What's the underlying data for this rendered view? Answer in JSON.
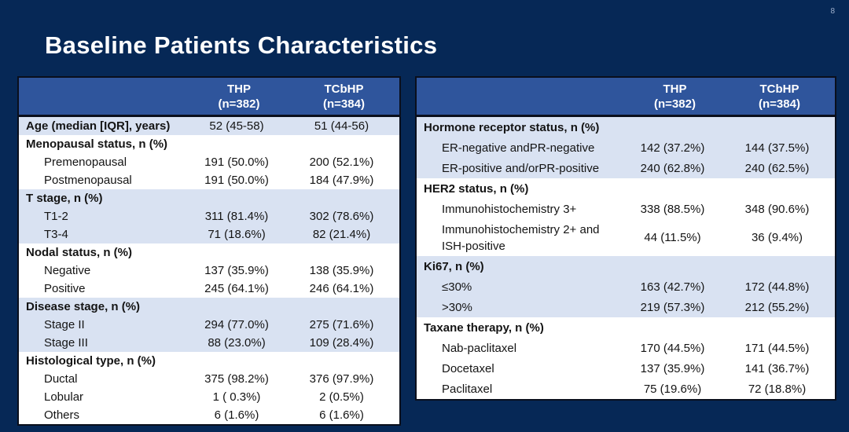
{
  "page_number": "8",
  "title": "Baseline Patients Characteristics",
  "colors": {
    "slide_background": "#062856",
    "table_header_blue": "#2f559c",
    "row_light_blue": "#d9e2f2",
    "row_white": "#ffffff",
    "table_border": "#0a0f1c",
    "title_text": "#ffffff"
  },
  "left_table": {
    "header": {
      "group_label": "",
      "thp": [
        "THP",
        "(n=382)"
      ],
      "tcbhp": [
        "TCbHP",
        "(n=384)"
      ]
    },
    "groups": [
      {
        "shade": "blue",
        "rows": [
          {
            "label": "Age (median [IQR], years)",
            "bold": true,
            "indent": false,
            "thp": "52 (45-58)",
            "tcbhp": "51 (44-56)"
          }
        ]
      },
      {
        "shade": "white",
        "rows": [
          {
            "label": "Menopausal status, n (%)",
            "bold": true,
            "indent": false,
            "thp": "",
            "tcbhp": ""
          },
          {
            "label": "Premenopausal",
            "bold": false,
            "indent": true,
            "thp": "191 (50.0%)",
            "tcbhp": "200 (52.1%)"
          },
          {
            "label": "Postmenopausal",
            "bold": false,
            "indent": true,
            "thp": "191 (50.0%)",
            "tcbhp": "184 (47.9%)"
          }
        ]
      },
      {
        "shade": "blue",
        "rows": [
          {
            "label": "T stage, n (%)",
            "bold": true,
            "indent": false,
            "thp": "",
            "tcbhp": ""
          },
          {
            "label": "T1-2",
            "bold": false,
            "indent": true,
            "thp": "311 (81.4%)",
            "tcbhp": "302 (78.6%)"
          },
          {
            "label": "T3-4",
            "bold": false,
            "indent": true,
            "thp": "71 (18.6%)",
            "tcbhp": "82 (21.4%)"
          }
        ]
      },
      {
        "shade": "white",
        "rows": [
          {
            "label": "Nodal status, n (%)",
            "bold": true,
            "indent": false,
            "thp": "",
            "tcbhp": ""
          },
          {
            "label": "Negative",
            "bold": false,
            "indent": true,
            "thp": "137 (35.9%)",
            "tcbhp": "138 (35.9%)"
          },
          {
            "label": "Positive",
            "bold": false,
            "indent": true,
            "thp": "245 (64.1%)",
            "tcbhp": "246 (64.1%)"
          }
        ]
      },
      {
        "shade": "blue",
        "rows": [
          {
            "label": "Disease stage, n (%)",
            "bold": true,
            "indent": false,
            "thp": "",
            "tcbhp": ""
          },
          {
            "label": "Stage II",
            "bold": false,
            "indent": true,
            "thp": "294 (77.0%)",
            "tcbhp": "275 (71.6%)"
          },
          {
            "label": "Stage III",
            "bold": false,
            "indent": true,
            "thp": "88 (23.0%)",
            "tcbhp": "109 (28.4%)"
          }
        ]
      },
      {
        "shade": "white",
        "rows": [
          {
            "label": "Histological type, n (%)",
            "bold": true,
            "indent": false,
            "thp": "",
            "tcbhp": ""
          },
          {
            "label": "Ductal",
            "bold": false,
            "indent": true,
            "thp": "375 (98.2%)",
            "tcbhp": "376 (97.9%)"
          },
          {
            "label": "Lobular",
            "bold": false,
            "indent": true,
            "thp": "1 ( 0.3%)",
            "tcbhp": "2 (0.5%)"
          },
          {
            "label": "Others",
            "bold": false,
            "indent": true,
            "thp": "6 (1.6%)",
            "tcbhp": "6 (1.6%)"
          }
        ]
      }
    ]
  },
  "right_table": {
    "header": {
      "group_label": "",
      "thp": [
        "THP",
        "(n=382)"
      ],
      "tcbhp": [
        "TCbHP",
        "(n=384)"
      ]
    },
    "groups": [
      {
        "shade": "blue",
        "rows": [
          {
            "label": "Hormone receptor status, n (%)",
            "bold": true,
            "indent": false,
            "thp": "",
            "tcbhp": ""
          },
          {
            "label": "ER-negative andPR-negative",
            "bold": false,
            "indent": true,
            "thp": "142 (37.2%)",
            "tcbhp": "144 (37.5%)"
          },
          {
            "label": "ER-positive and/orPR-positive",
            "bold": false,
            "indent": true,
            "thp": "240 (62.8%)",
            "tcbhp": "240 (62.5%)"
          }
        ]
      },
      {
        "shade": "white",
        "rows": [
          {
            "label": "HER2 status, n (%)",
            "bold": true,
            "indent": false,
            "thp": "",
            "tcbhp": ""
          },
          {
            "label": "Immunohistochemistry 3+",
            "bold": false,
            "indent": true,
            "thp": "338 (88.5%)",
            "tcbhp": "348 (90.6%)"
          },
          {
            "label": "Immunohistochemistry 2+ and ISH-positive",
            "bold": false,
            "indent": true,
            "thp": "44 (11.5%)",
            "tcbhp": "36 (9.4%)"
          }
        ]
      },
      {
        "shade": "blue",
        "rows": [
          {
            "label": "Ki67, n (%)",
            "bold": true,
            "indent": false,
            "thp": "",
            "tcbhp": ""
          },
          {
            "label": "≤30%",
            "bold": false,
            "indent": true,
            "thp": "163 (42.7%)",
            "tcbhp": "172 (44.8%)"
          },
          {
            "label": ">30%",
            "bold": false,
            "indent": true,
            "thp": "219 (57.3%)",
            "tcbhp": "212 (55.2%)"
          }
        ]
      },
      {
        "shade": "white",
        "rows": [
          {
            "label": "Taxane therapy, n (%)",
            "bold": true,
            "indent": false,
            "thp": "",
            "tcbhp": ""
          },
          {
            "label": "Nab-paclitaxel",
            "bold": false,
            "indent": true,
            "thp": "170 (44.5%)",
            "tcbhp": "171 (44.5%)"
          },
          {
            "label": "Docetaxel",
            "bold": false,
            "indent": true,
            "thp": "137 (35.9%)",
            "tcbhp": "141 (36.7%)"
          },
          {
            "label": "Paclitaxel",
            "bold": false,
            "indent": true,
            "thp": "75 (19.6%)",
            "tcbhp": "72 (18.8%)"
          }
        ]
      }
    ]
  }
}
